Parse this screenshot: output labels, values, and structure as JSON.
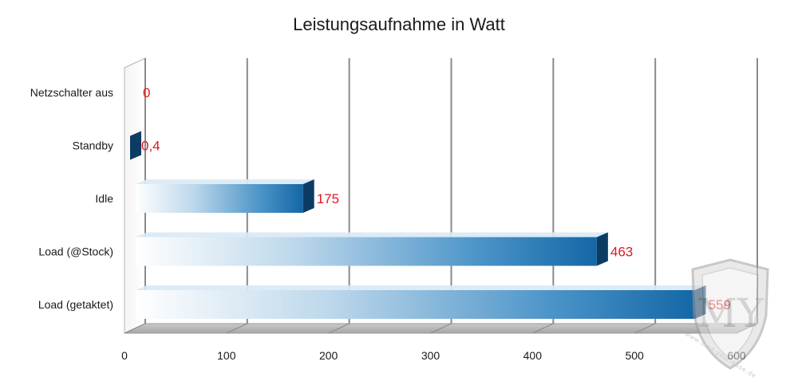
{
  "chart_data": {
    "type": "bar",
    "orientation": "horizontal",
    "title": "Leistungsaufnahme in Watt",
    "categories": [
      "Netzschalter aus",
      "Standby",
      "Idle",
      "Load (@Stock)",
      "Load (getaktet)"
    ],
    "values": [
      0,
      0.4,
      175,
      463,
      559
    ],
    "value_labels": [
      "0",
      "0,4",
      "175",
      "463",
      "559"
    ],
    "xlim": [
      0,
      600
    ],
    "x_ticks": [
      "0",
      "100",
      "200",
      "300",
      "400",
      "500",
      "600"
    ],
    "grid": true,
    "legend": "none",
    "colors": {
      "bar": "#1d6fad",
      "bar_end": "#0c3c63",
      "value_label": "#e3171d",
      "grid": "#8a8a8a"
    }
  },
  "watermark": {
    "icon": "shield-logo-icon",
    "text": "www.mod-your-case.de"
  }
}
